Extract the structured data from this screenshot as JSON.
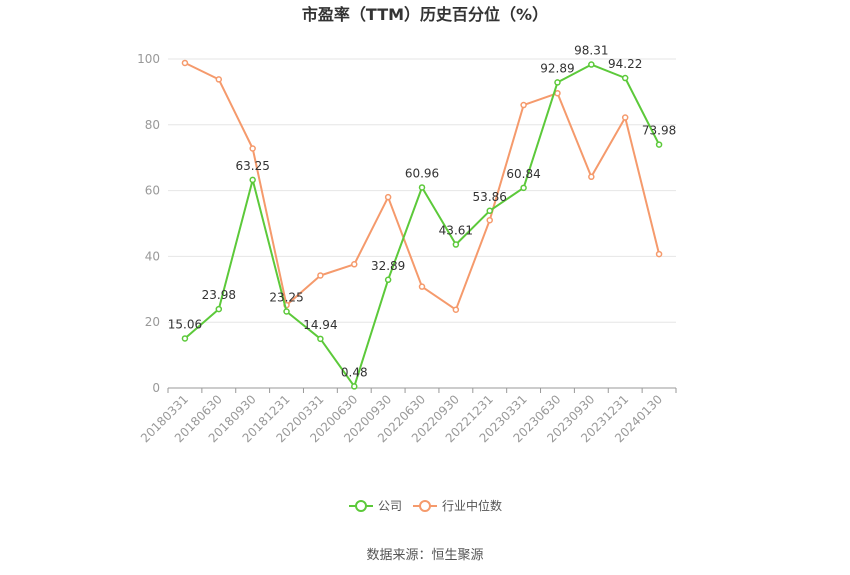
{
  "chart_data": {
    "type": "line",
    "title": "市盈率（TTM）历史百分位（%）",
    "categories": [
      "20180331",
      "20180630",
      "20180930",
      "20181231",
      "20200331",
      "20200630",
      "20200930",
      "20220630",
      "20220930",
      "20221231",
      "20230331",
      "20230630",
      "20230930",
      "20231231",
      "20240130"
    ],
    "ylim": [
      0,
      100
    ],
    "yticks": [
      0,
      20,
      40,
      60,
      80,
      100
    ],
    "grid": true,
    "legend_position": "bottom-center",
    "series": [
      {
        "name": "公司",
        "color": "#5cc93a",
        "values": [
          15.06,
          23.98,
          63.25,
          23.25,
          14.94,
          0.48,
          32.89,
          60.96,
          43.61,
          53.86,
          60.84,
          92.89,
          98.31,
          94.22,
          73.98
        ],
        "labels": [
          "15.06",
          "23.98",
          "63.25",
          "23.25",
          "14.94",
          "0.48",
          "32.89",
          "60.96",
          "43.61",
          "53.86",
          "60.84",
          "92.89",
          "98.31",
          "94.22",
          "73.98"
        ]
      },
      {
        "name": "行业中位数",
        "color": "#f59a6c",
        "values": [
          98.8,
          93.8,
          72.8,
          25.2,
          34.2,
          37.6,
          58.0,
          30.8,
          23.8,
          51.0,
          86.0,
          89.6,
          64.2,
          82.2,
          40.7
        ]
      }
    ],
    "source": "数据来源：恒生聚源"
  }
}
